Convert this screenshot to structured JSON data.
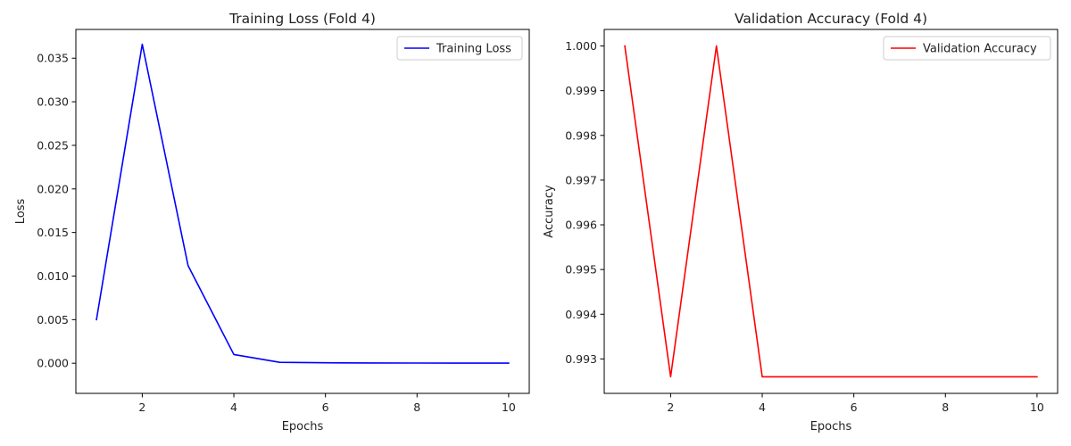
{
  "chart_data": [
    {
      "type": "line",
      "title": "Training Loss (Fold 4)",
      "xlabel": "Epochs",
      "ylabel": "Loss",
      "xlim": [
        0.55,
        10.45
      ],
      "ylim": [
        -0.00346,
        0.0383
      ],
      "xticks": [
        2,
        4,
        6,
        8,
        10
      ],
      "xtick_labels": [
        "2",
        "4",
        "6",
        "8",
        "10"
      ],
      "yticks": [
        0.0,
        0.005,
        0.01,
        0.015,
        0.02,
        0.025,
        0.03,
        0.035
      ],
      "ytick_labels": [
        "0.000",
        "0.005",
        "0.010",
        "0.015",
        "0.020",
        "0.025",
        "0.030",
        "0.035"
      ],
      "grid": false,
      "legend_position": "top-right",
      "x": [
        1,
        2,
        3,
        4,
        5,
        6,
        7,
        8,
        9,
        10
      ],
      "series": [
        {
          "name": "Training Loss",
          "color": "#0000ff",
          "values": [
            0.005,
            0.0366,
            0.0112,
            0.001,
            0.0001,
            5e-05,
            3e-05,
            2e-05,
            1e-05,
            1e-05
          ]
        }
      ]
    },
    {
      "type": "line",
      "title": "Validation Accuracy (Fold 4)",
      "xlabel": "Epochs",
      "ylabel": "Accuracy",
      "xlim": [
        0.55,
        10.45
      ],
      "ylim": [
        0.99223,
        1.00037
      ],
      "xticks": [
        2,
        4,
        6,
        8,
        10
      ],
      "xtick_labels": [
        "2",
        "4",
        "6",
        "8",
        "10"
      ],
      "yticks": [
        0.993,
        0.994,
        0.995,
        0.996,
        0.997,
        0.998,
        0.999,
        1.0
      ],
      "ytick_labels": [
        "0.993",
        "0.994",
        "0.995",
        "0.996",
        "0.997",
        "0.998",
        "0.999",
        "1.000"
      ],
      "grid": false,
      "legend_position": "top-right",
      "x": [
        1,
        2,
        3,
        4,
        5,
        6,
        7,
        8,
        9,
        10
      ],
      "series": [
        {
          "name": "Validation Accuracy",
          "color": "#ff0000",
          "values": [
            1.0,
            0.9926,
            1.0,
            0.9926,
            0.9926,
            0.9926,
            0.9926,
            0.9926,
            0.9926,
            0.9926
          ]
        }
      ]
    }
  ]
}
